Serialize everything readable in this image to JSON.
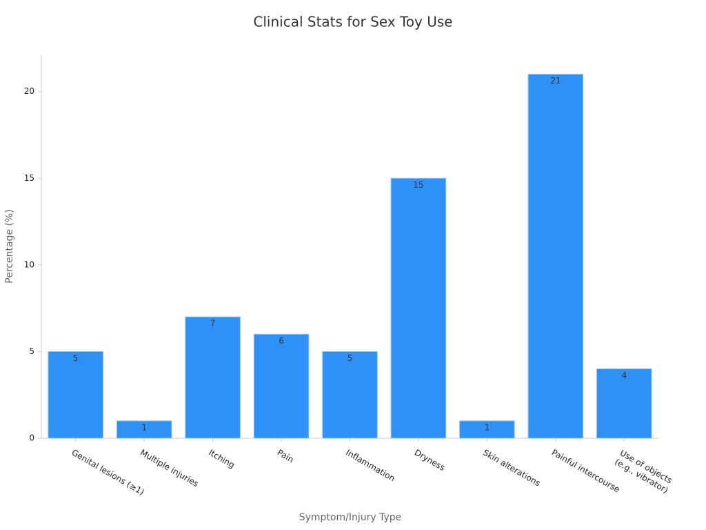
{
  "chart_data": {
    "type": "bar",
    "title": "Clinical Stats for Sex Toy Use",
    "x_label": "Symptom/Injury Type",
    "y_label": "Percentage (%)",
    "categories": [
      "Genital lesions (≥1)",
      "Multiple injuries",
      "Itching",
      "Pain",
      "Inflammation",
      "Dryness",
      "Skin alterations",
      "Painful intercourse",
      "Use of objects (e.g., vibrator)"
    ],
    "values": [
      5,
      1,
      7,
      6,
      5,
      15,
      1,
      21,
      4
    ],
    "color": "#2f91f5",
    "ylim": [
      0,
      22.1
    ],
    "yticks": [
      0,
      5,
      10,
      15,
      20
    ],
    "grid": false
  }
}
